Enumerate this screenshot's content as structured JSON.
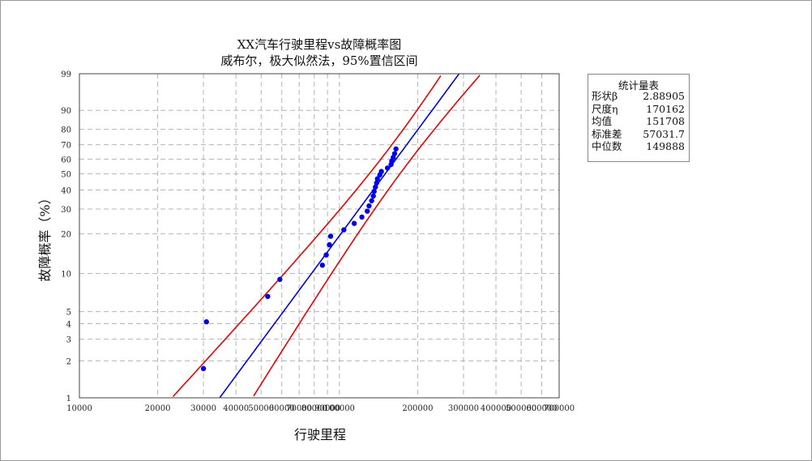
{
  "chart_data": {
    "type": "scatter",
    "title": "XX汽车行驶里程vs故障概率图",
    "subtitle": "威布尔，极大似然法，95%置信区间",
    "xlabel": "行驶里程",
    "ylabel": "故障概率（%）",
    "x_scale": "log",
    "y_scale": "weibull-probability",
    "xlim": [
      10000,
      700000
    ],
    "ylim": [
      1,
      99
    ],
    "x_ticks": [
      10000,
      20000,
      30000,
      40000,
      50000,
      60000,
      70000,
      80000,
      90000,
      100000,
      200000,
      300000,
      400000,
      500000,
      600000,
      700000
    ],
    "x_tick_labels": [
      "10000",
      "20000",
      "30000",
      "40000",
      "50000",
      "60000",
      "70000",
      "80000",
      "90000",
      "100000",
      "200000",
      "300000",
      "400000",
      "500000",
      "600000",
      "700000"
    ],
    "y_ticks": [
      1,
      2,
      3,
      4,
      5,
      10,
      20,
      30,
      40,
      50,
      60,
      70,
      80,
      90,
      99
    ],
    "y_tick_labels": [
      "1",
      "2",
      "3",
      "4",
      "5",
      "10",
      "20",
      "30",
      "40",
      "50",
      "60",
      "70",
      "80",
      "90",
      "99"
    ],
    "grid": true,
    "points": {
      "color": "#0000ee",
      "x": [
        30000,
        30800,
        53000,
        59000,
        86000,
        89000,
        91500,
        92500,
        104000,
        114000,
        122000,
        128000,
        130000,
        133000,
        135000,
        136000,
        137500,
        139000,
        140000,
        143000,
        145000,
        153000,
        158000,
        159000,
        161000,
        163000,
        165000
      ],
      "y": [
        1.73,
        4.14,
        6.6,
        9.0,
        11.6,
        13.9,
        16.6,
        19.2,
        21.4,
        23.8,
        26.4,
        29.0,
        31.5,
        34.1,
        36.6,
        39.2,
        41.7,
        44.2,
        46.8,
        49.3,
        51.6,
        53.9,
        56.3,
        58.7,
        61.1,
        63.8,
        67.1
      ]
    },
    "fit_line": {
      "color": "#0000ee",
      "shape": 2.88905,
      "scale": 170162
    },
    "confidence_band": {
      "color": "#ee0000",
      "level": "95%"
    }
  },
  "stats_box": {
    "title": "统计量表",
    "rows": [
      {
        "label": "形状β",
        "value": "2.88905"
      },
      {
        "label": "尺度η",
        "value": "170162"
      },
      {
        "label": "均值",
        "value": "151708"
      },
      {
        "label": "标准差",
        "value": "57031.7"
      },
      {
        "label": "中位数",
        "value": "149888"
      }
    ]
  }
}
